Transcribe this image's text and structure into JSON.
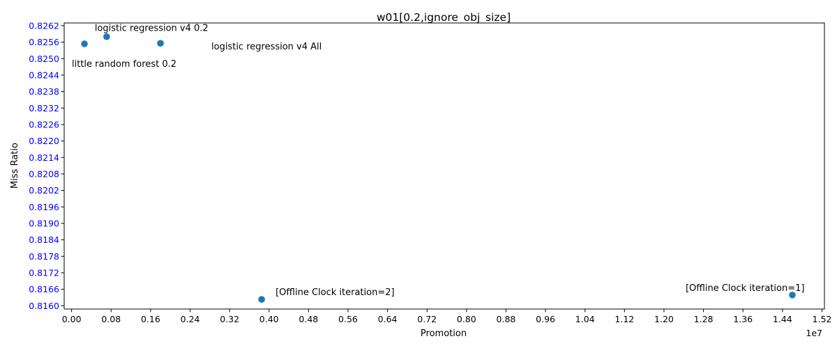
{
  "chart_data": {
    "type": "scatter",
    "title": "w01[0.2,ignore_obj_size]",
    "xlabel": "Promotion",
    "ylabel": "Miss Ratio",
    "x_offset_label": "1e7",
    "x_scale": 10000000,
    "xlim": [
      -0.015,
      1.525
    ],
    "ylim": [
      0.81588,
      0.8263
    ],
    "x_ticks": [
      0.0,
      0.08,
      0.16,
      0.24,
      0.32,
      0.4,
      0.48,
      0.56,
      0.64,
      0.72,
      0.8,
      0.88,
      0.96,
      1.04,
      1.12,
      1.2,
      1.28,
      1.36,
      1.44,
      1.52
    ],
    "y_ticks": [
      0.816,
      0.8166,
      0.8172,
      0.8178,
      0.8184,
      0.819,
      0.8196,
      0.8202,
      0.8208,
      0.8214,
      0.822,
      0.8226,
      0.8232,
      0.8238,
      0.8244,
      0.825,
      0.8256,
      0.8262
    ],
    "y_tick_color": "#0000ff",
    "marker_color": "#1f77b4",
    "grid": false,
    "points": [
      {
        "x": 0.026,
        "y": 0.82554,
        "label": "little random forest 0.2"
      },
      {
        "x": 0.071,
        "y": 0.8258,
        "label": "logistic regression v4 0.2"
      },
      {
        "x": 0.18,
        "y": 0.82556,
        "label": "logistic regression v4 All"
      },
      {
        "x": 0.385,
        "y": 0.81623,
        "label": "[Offline Clock iteration=2]"
      },
      {
        "x": 1.46,
        "y": 0.81639,
        "label": "[Offline Clock iteration=1]"
      }
    ]
  }
}
